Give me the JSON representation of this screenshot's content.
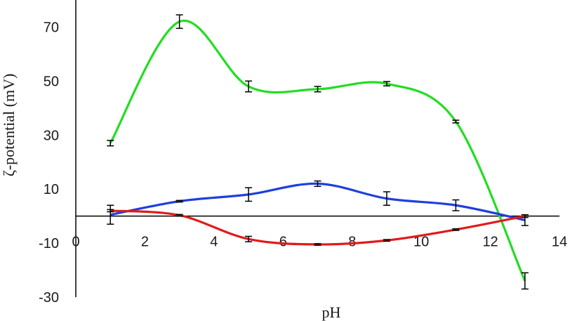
{
  "chart_data": {
    "type": "line",
    "title": "",
    "xlabel": "pH",
    "ylabel": "ζ-potential (mV)",
    "xlim": [
      0,
      14
    ],
    "ylim": [
      -30,
      80
    ],
    "x_ticks": [
      0,
      2,
      4,
      6,
      8,
      10,
      12,
      14
    ],
    "y_ticks": [
      -30,
      -10,
      10,
      30,
      50,
      70
    ],
    "grid": false,
    "legend": "none",
    "smooth": true,
    "series": [
      {
        "color": "#22dd22",
        "x": [
          1,
          3,
          5,
          7,
          9,
          11,
          13
        ],
        "y": [
          27,
          72,
          48,
          47,
          49,
          35,
          -24
        ],
        "error": [
          1,
          2.5,
          2,
          1,
          0.8,
          0.5,
          3
        ]
      },
      {
        "color": "#1f3fdd",
        "x": [
          1,
          3,
          5,
          7,
          9,
          11,
          13
        ],
        "y": [
          0.5,
          5.5,
          8,
          12,
          6.5,
          4,
          -1.5
        ],
        "error": [
          3.5,
          0.3,
          2.5,
          1,
          2.5,
          2,
          2
        ]
      },
      {
        "color": "#e01b1b",
        "x": [
          1,
          3,
          5,
          7,
          9,
          11,
          13
        ],
        "y": [
          2,
          0.3,
          -8.5,
          -10.5,
          -9,
          -5,
          0
        ],
        "error": [
          0.4,
          0.3,
          1,
          0.3,
          0.3,
          0.3,
          0.5
        ]
      }
    ]
  }
}
